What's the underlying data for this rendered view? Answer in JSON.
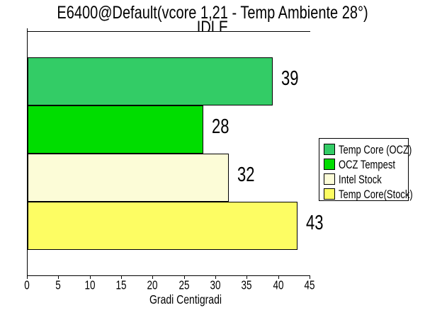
{
  "title": "E6400@Default(vcore 1,21 - Temp Ambiente 28°)",
  "subtitle": "IDLE",
  "chart_data": {
    "type": "bar",
    "orientation": "horizontal",
    "title": "E6400@Default(vcore 1,21 - Temp Ambiente 28°)",
    "subtitle": "IDLE",
    "categories": [
      "Temp Core (OCZ)",
      "OCZ Tempest",
      "Intel Stock",
      "Temp Core(Stock)"
    ],
    "values": [
      39,
      28,
      32,
      43
    ],
    "bar_colors": [
      "#33CC66",
      "#00DD00",
      "#FCFCD7",
      "#FDFD63"
    ],
    "xlabel": "Gradi Centigradi",
    "ylabel": "",
    "xlim": [
      0,
      45
    ],
    "xticks": [
      0,
      5,
      10,
      15,
      20,
      25,
      30,
      35,
      40,
      45
    ],
    "grid": false,
    "legend_position": "right"
  },
  "legend": {
    "items": [
      {
        "label": "Temp Core (OCZ)",
        "color": "#33CC66"
      },
      {
        "label": "OCZ Tempest",
        "color": "#00DD00"
      },
      {
        "label": "Intel Stock",
        "color": "#FCFCD7"
      },
      {
        "label": "Temp Core(Stock)",
        "color": "#FDFD63"
      }
    ]
  },
  "colors": {
    "axis": "#000000",
    "text": "#000000",
    "background": "#FFFFFF"
  }
}
